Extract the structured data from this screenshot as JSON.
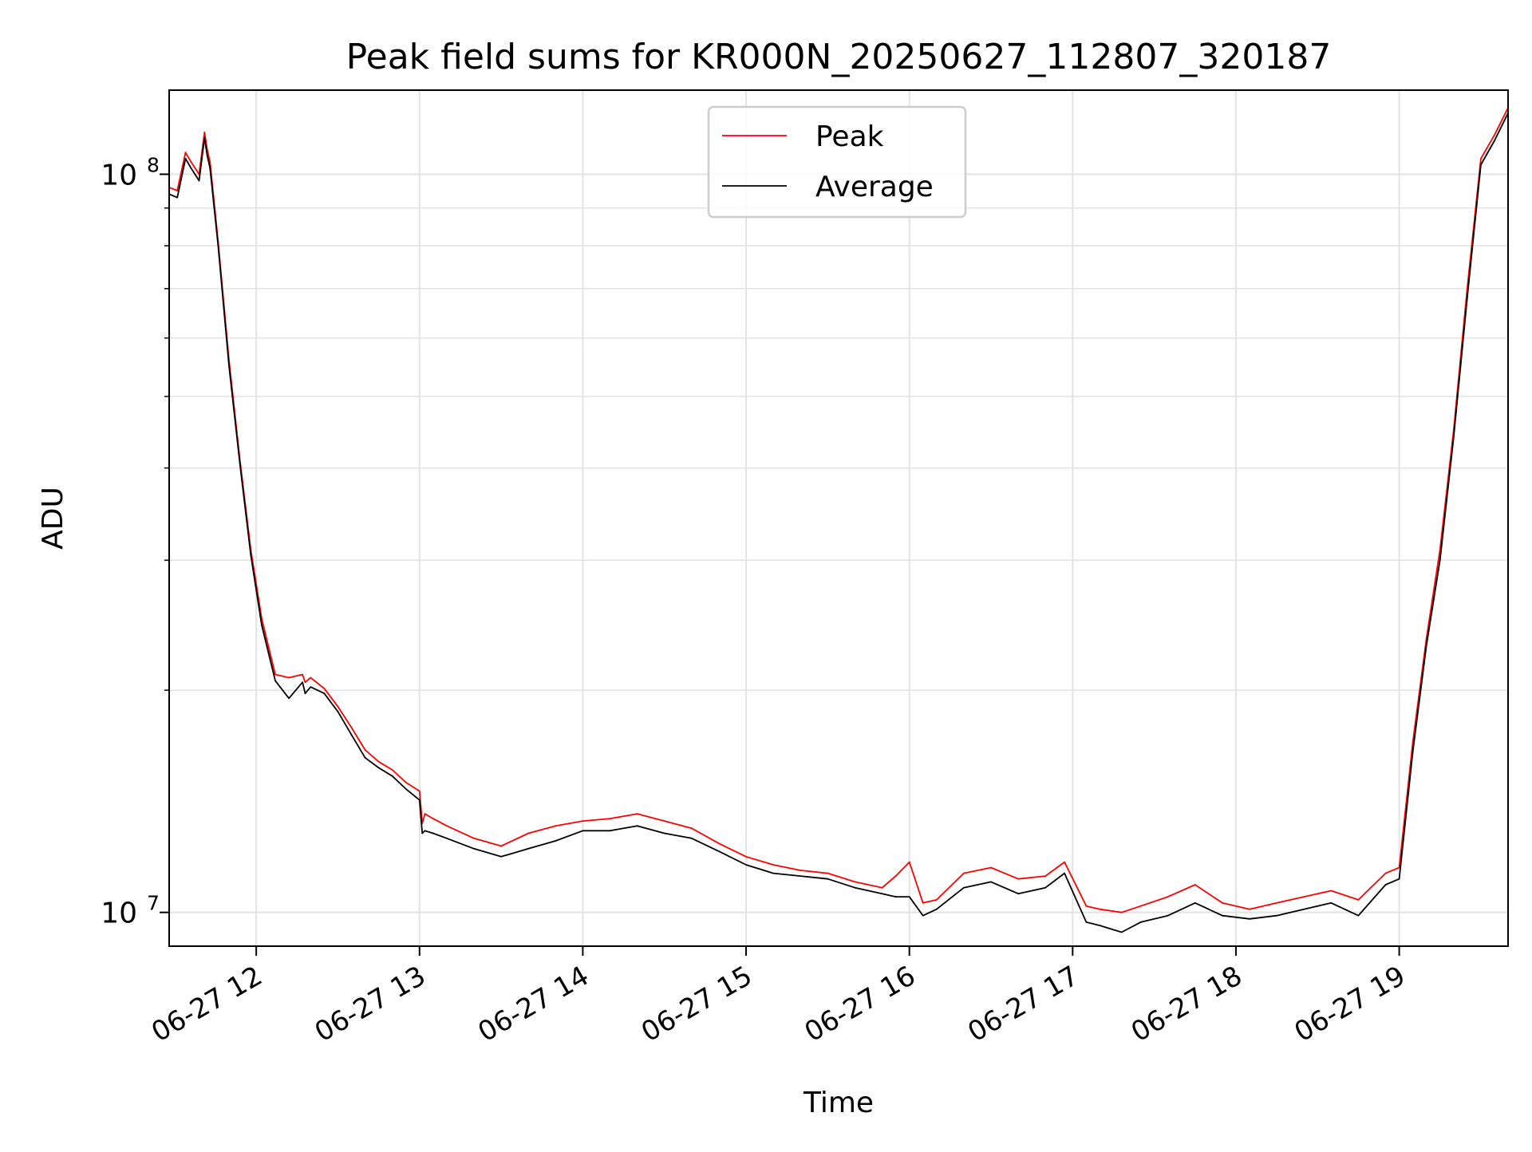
{
  "chart_data": {
    "type": "line",
    "title": "Peak field sums for KR000N_20250627_112807_320187",
    "xlabel": "Time",
    "ylabel": "ADU",
    "y_scale": "log",
    "ylim": [
      9000000,
      130000000
    ],
    "xlim": [
      "2025-06-27 11:28",
      "2025-06-27 19:40"
    ],
    "grid": true,
    "legend_position": "top-center",
    "x_ticks": [
      "06-27 12",
      "06-27 13",
      "06-27 14",
      "06-27 15",
      "06-27 16",
      "06-27 17",
      "06-27 18",
      "06-27 19"
    ],
    "y_ticks": [
      {
        "base": "10",
        "exp": "7"
      },
      {
        "base": "10",
        "exp": "8"
      }
    ],
    "series": [
      {
        "name": "Peak",
        "color": "#ff0000",
        "x": [
          "2025-06-27 11:28",
          "2025-06-27 11:31",
          "2025-06-27 11:34",
          "2025-06-27 11:36",
          "2025-06-27 11:39",
          "2025-06-27 11:41",
          "2025-06-27 11:42",
          "2025-06-27 11:43",
          "2025-06-27 11:46",
          "2025-06-27 11:50",
          "2025-06-27 11:54",
          "2025-06-27 11:58",
          "2025-06-27 12:02",
          "2025-06-27 12:07",
          "2025-06-27 12:12",
          "2025-06-27 12:17",
          "2025-06-27 12:18",
          "2025-06-27 12:20",
          "2025-06-27 12:25",
          "2025-06-27 12:30",
          "2025-06-27 12:35",
          "2025-06-27 12:40",
          "2025-06-27 12:45",
          "2025-06-27 12:50",
          "2025-06-27 12:55",
          "2025-06-27 13:00",
          "2025-06-27 13:01",
          "2025-06-27 13:02",
          "2025-06-27 13:05",
          "2025-06-27 13:10",
          "2025-06-27 13:20",
          "2025-06-27 13:30",
          "2025-06-27 13:40",
          "2025-06-27 13:50",
          "2025-06-27 14:00",
          "2025-06-27 14:10",
          "2025-06-27 14:20",
          "2025-06-27 14:30",
          "2025-06-27 14:40",
          "2025-06-27 14:50",
          "2025-06-27 15:00",
          "2025-06-27 15:10",
          "2025-06-27 15:20",
          "2025-06-27 15:30",
          "2025-06-27 15:40",
          "2025-06-27 15:50",
          "2025-06-27 15:55",
          "2025-06-27 16:00",
          "2025-06-27 16:05",
          "2025-06-27 16:10",
          "2025-06-27 16:20",
          "2025-06-27 16:30",
          "2025-06-27 16:40",
          "2025-06-27 16:50",
          "2025-06-27 16:57",
          "2025-06-27 17:05",
          "2025-06-27 17:10",
          "2025-06-27 17:18",
          "2025-06-27 17:25",
          "2025-06-27 17:35",
          "2025-06-27 17:45",
          "2025-06-27 17:55",
          "2025-06-27 18:05",
          "2025-06-27 18:15",
          "2025-06-27 18:25",
          "2025-06-27 18:35",
          "2025-06-27 18:45",
          "2025-06-27 18:55",
          "2025-06-27 19:00",
          "2025-06-27 19:05",
          "2025-06-27 19:10",
          "2025-06-27 19:15",
          "2025-06-27 19:20",
          "2025-06-27 19:25",
          "2025-06-27 19:30",
          "2025-06-27 19:35",
          "2025-06-27 19:40"
        ],
        "y": [
          96000000,
          95000000,
          107000000,
          104000000,
          100000000,
          114000000,
          108000000,
          104000000,
          81000000,
          56000000,
          41000000,
          31000000,
          25000000,
          21000000,
          20800000,
          21000000,
          20500000,
          20800000,
          20100000,
          19000000,
          17800000,
          16600000,
          16000000,
          15600000,
          15000000,
          14600000,
          13200000,
          13600000,
          13400000,
          13100000,
          12600000,
          12300000,
          12800000,
          13100000,
          13300000,
          13400000,
          13600000,
          13300000,
          13000000,
          12400000,
          11900000,
          11600000,
          11400000,
          11300000,
          11000000,
          10800000,
          11200000,
          11700000,
          10300000,
          10400000,
          11300000,
          11500000,
          11100000,
          11200000,
          11700000,
          10200000,
          10100000,
          10000000,
          10200000,
          10500000,
          10900000,
          10300000,
          10100000,
          10300000,
          10500000,
          10700000,
          10400000,
          11300000,
          11500000,
          17000000,
          23500000,
          31000000,
          45000000,
          70000000,
          105000000,
          113000000,
          123000000
        ]
      },
      {
        "name": "Average",
        "color": "#000000",
        "x": [
          "2025-06-27 11:28",
          "2025-06-27 11:31",
          "2025-06-27 11:34",
          "2025-06-27 11:36",
          "2025-06-27 11:39",
          "2025-06-27 11:41",
          "2025-06-27 11:42",
          "2025-06-27 11:43",
          "2025-06-27 11:46",
          "2025-06-27 11:50",
          "2025-06-27 11:54",
          "2025-06-27 11:58",
          "2025-06-27 12:02",
          "2025-06-27 12:07",
          "2025-06-27 12:12",
          "2025-06-27 12:17",
          "2025-06-27 12:18",
          "2025-06-27 12:20",
          "2025-06-27 12:25",
          "2025-06-27 12:30",
          "2025-06-27 12:35",
          "2025-06-27 12:40",
          "2025-06-27 12:45",
          "2025-06-27 12:50",
          "2025-06-27 12:55",
          "2025-06-27 13:00",
          "2025-06-27 13:01",
          "2025-06-27 13:02",
          "2025-06-27 13:05",
          "2025-06-27 13:10",
          "2025-06-27 13:20",
          "2025-06-27 13:30",
          "2025-06-27 13:40",
          "2025-06-27 13:50",
          "2025-06-27 14:00",
          "2025-06-27 14:10",
          "2025-06-27 14:20",
          "2025-06-27 14:30",
          "2025-06-27 14:40",
          "2025-06-27 14:50",
          "2025-06-27 15:00",
          "2025-06-27 15:10",
          "2025-06-27 15:20",
          "2025-06-27 15:30",
          "2025-06-27 15:40",
          "2025-06-27 15:50",
          "2025-06-27 15:55",
          "2025-06-27 16:00",
          "2025-06-27 16:05",
          "2025-06-27 16:10",
          "2025-06-27 16:20",
          "2025-06-27 16:30",
          "2025-06-27 16:40",
          "2025-06-27 16:50",
          "2025-06-27 16:57",
          "2025-06-27 17:05",
          "2025-06-27 17:10",
          "2025-06-27 17:18",
          "2025-06-27 17:25",
          "2025-06-27 17:35",
          "2025-06-27 17:45",
          "2025-06-27 17:55",
          "2025-06-27 18:05",
          "2025-06-27 18:15",
          "2025-06-27 18:25",
          "2025-06-27 18:35",
          "2025-06-27 18:45",
          "2025-06-27 18:55",
          "2025-06-27 19:00",
          "2025-06-27 19:05",
          "2025-06-27 19:10",
          "2025-06-27 19:15",
          "2025-06-27 19:20",
          "2025-06-27 19:25",
          "2025-06-27 19:30",
          "2025-06-27 19:35",
          "2025-06-27 19:40"
        ],
        "y": [
          94000000,
          93000000,
          105000000,
          102000000,
          98000000,
          112000000,
          106000000,
          102000000,
          80000000,
          55000000,
          40500000,
          30500000,
          24500000,
          20600000,
          19500000,
          20500000,
          19800000,
          20200000,
          19800000,
          18700000,
          17400000,
          16200000,
          15700000,
          15300000,
          14700000,
          14200000,
          12800000,
          12900000,
          12800000,
          12600000,
          12200000,
          11900000,
          12200000,
          12500000,
          12900000,
          12900000,
          13100000,
          12800000,
          12600000,
          12100000,
          11600000,
          11300000,
          11200000,
          11100000,
          10800000,
          10600000,
          10500000,
          10500000,
          9900000,
          10100000,
          10800000,
          11000000,
          10600000,
          10800000,
          11300000,
          9700000,
          9600000,
          9400000,
          9700000,
          9900000,
          10300000,
          9900000,
          9800000,
          9900000,
          10100000,
          10300000,
          9900000,
          10900000,
          11100000,
          16500000,
          23000000,
          30000000,
          44000000,
          68000000,
          103000000,
          111000000,
          121000000
        ]
      }
    ]
  }
}
